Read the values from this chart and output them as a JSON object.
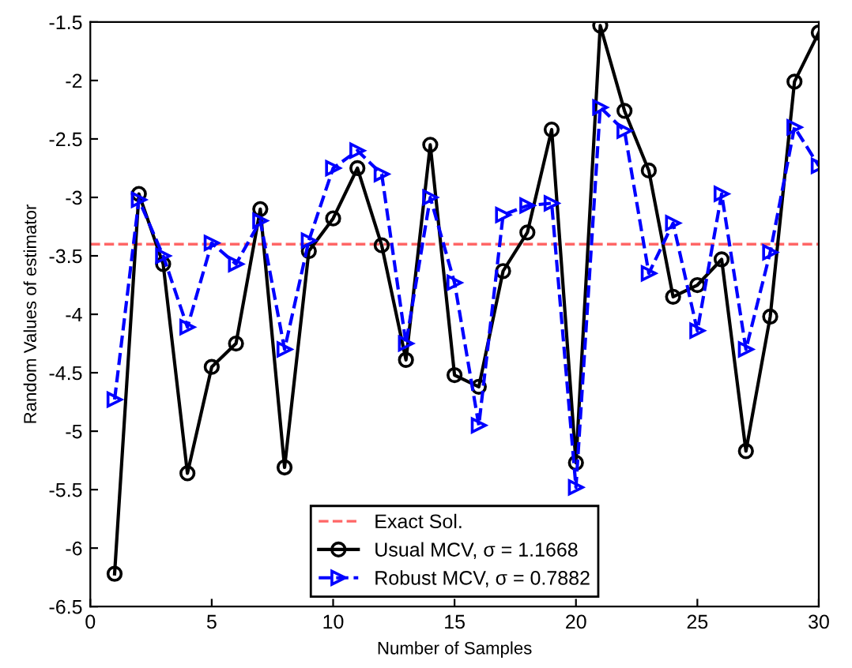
{
  "chart_data": {
    "type": "line",
    "xlabel": "Number of Samples",
    "ylabel": "Random Values of estimator",
    "x": [
      1,
      2,
      3,
      4,
      5,
      6,
      7,
      8,
      9,
      10,
      11,
      12,
      13,
      14,
      15,
      16,
      17,
      18,
      19,
      20,
      21,
      22,
      23,
      24,
      25,
      26,
      27,
      28,
      29,
      30
    ],
    "series": [
      {
        "name": "Usual MCV, σ = 1.1668",
        "color": "#000000",
        "marker": "circle",
        "line_style": "solid",
        "values": [
          -6.22,
          -2.97,
          -3.57,
          -5.36,
          -4.45,
          -4.25,
          -3.1,
          -5.31,
          -3.46,
          -3.18,
          -2.75,
          -3.41,
          -4.39,
          -2.55,
          -4.52,
          -4.62,
          -3.63,
          -3.3,
          -2.42,
          -5.27,
          -1.53,
          -2.26,
          -2.77,
          -3.85,
          -3.75,
          -3.53,
          -5.17,
          -4.02,
          -2.01,
          -1.59
        ]
      },
      {
        "name": "Robust MCV, σ = 0.7882",
        "color": "#0000ff",
        "marker": "triangle",
        "line_style": "dashed",
        "values": [
          -4.73,
          -3.02,
          -3.5,
          -4.11,
          -3.39,
          -3.57,
          -3.2,
          -4.3,
          -3.37,
          -2.75,
          -2.6,
          -2.8,
          -4.25,
          -3.0,
          -3.73,
          -4.95,
          -3.15,
          -3.07,
          -3.05,
          -5.48,
          -2.23,
          -2.43,
          -3.65,
          -3.22,
          -4.14,
          -2.97,
          -4.3,
          -3.47,
          -2.4,
          -2.73
        ]
      }
    ],
    "ref_lines": [
      {
        "axis": "y",
        "value": -3.4,
        "label": "Exact Sol.",
        "color": "#ff6666",
        "line_style": "dashed"
      }
    ],
    "xlim": [
      0,
      30
    ],
    "xticks": [
      0,
      5,
      10,
      15,
      20,
      25,
      30
    ],
    "ylim": [
      -6.5,
      -1.5
    ],
    "yticks": [
      -6.5,
      -6,
      -5.5,
      -5,
      -4.5,
      -4,
      -3.5,
      -3,
      -2.5,
      -2,
      -1.5
    ],
    "grid": false,
    "legend": "bottom"
  }
}
